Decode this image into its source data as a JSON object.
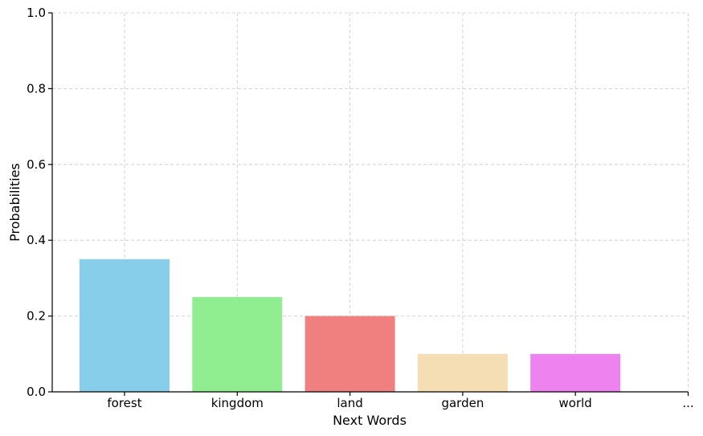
{
  "chart_data": {
    "type": "bar",
    "categories": [
      "forest",
      "kingdom",
      "land",
      "garden",
      "world",
      "..."
    ],
    "values": [
      0.35,
      0.25,
      0.2,
      0.1,
      0.1,
      null
    ],
    "colors": [
      "#87ceeb",
      "#90ee90",
      "#f08080",
      "#f5deb3",
      "#ee82ee",
      null
    ],
    "title": "",
    "xlabel": "Next Words",
    "ylabel": "Probabilities",
    "ylim": [
      0,
      1.0
    ],
    "yticks": [
      "0.0",
      "0.2",
      "0.4",
      "0.6",
      "0.8",
      "1.0"
    ],
    "grid": true,
    "legend": "none"
  }
}
